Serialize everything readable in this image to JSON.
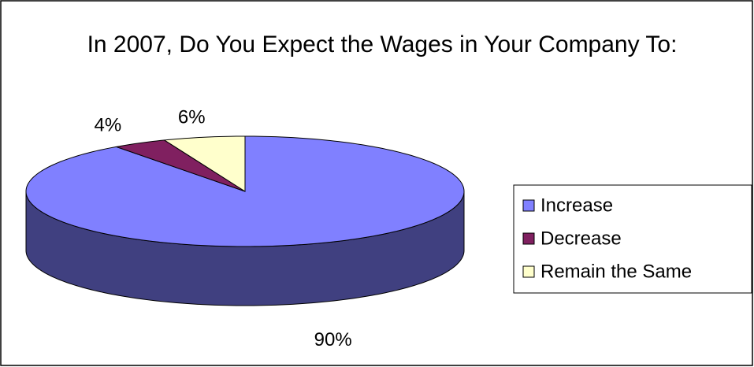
{
  "chart_data": {
    "type": "pie",
    "title": "In 2007, Do You Expect the Wages in Your Company To:",
    "categories": [
      "Increase",
      "Decrease",
      "Remain the Same"
    ],
    "values": [
      90,
      4,
      6
    ],
    "value_labels": [
      "90%",
      "4%",
      "6%"
    ],
    "colors": [
      "#8080ff",
      "#802060",
      "#ffffcc"
    ],
    "side_colors": [
      "#404080",
      "#401030",
      "#808066"
    ],
    "legend": "right"
  }
}
